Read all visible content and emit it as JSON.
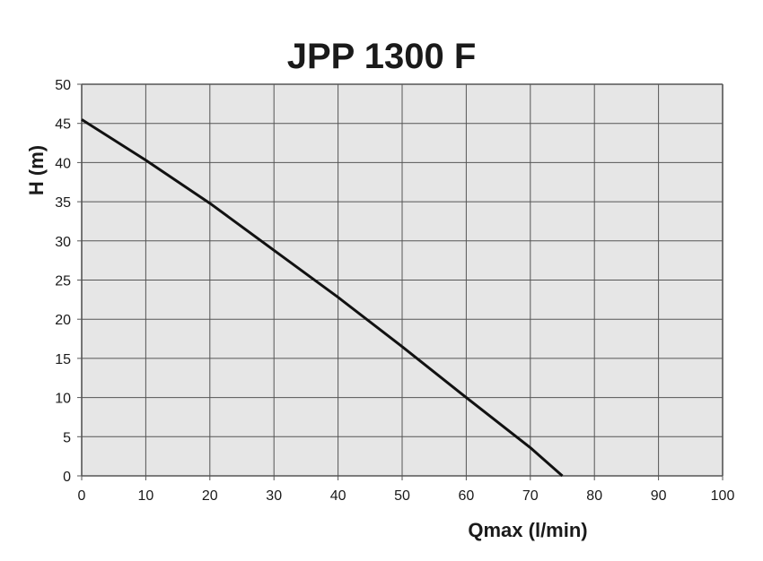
{
  "chart_data": {
    "type": "line",
    "title": "JPP 1300 F",
    "xlabel": "Qmax (l/min)",
    "ylabel": "H (m)",
    "xlim": [
      0,
      100
    ],
    "ylim": [
      0,
      50
    ],
    "x_ticks": [
      0,
      10,
      20,
      30,
      40,
      50,
      60,
      70,
      80,
      90,
      100
    ],
    "y_ticks": [
      0,
      5,
      10,
      15,
      20,
      25,
      30,
      35,
      40,
      45,
      50
    ],
    "grid": true,
    "legend": "none",
    "series": [
      {
        "x": [
          0,
          10,
          20,
          30,
          40,
          50,
          60,
          70,
          75
        ],
        "y": [
          45.5,
          40.3,
          34.8,
          28.8,
          22.8,
          16.5,
          10.0,
          3.6,
          0
        ]
      }
    ]
  },
  "colors": {
    "plot_background": "#e6e6e6",
    "grid": "#555555",
    "line": "#111111",
    "text": "#1a1a1a"
  }
}
